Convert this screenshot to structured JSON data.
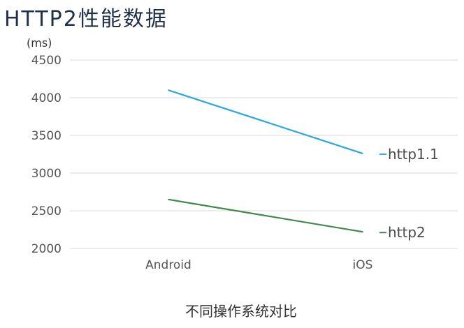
{
  "title": "HTTP2性能数据",
  "chart_data": {
    "type": "line",
    "categories": [
      "Android",
      "iOS"
    ],
    "series": [
      {
        "name": "http1.1",
        "values": [
          4100,
          3260
        ],
        "color": "#29a9e0"
      },
      {
        "name": "http2",
        "values": [
          2650,
          2220
        ],
        "color": "#3d8a4a"
      }
    ],
    "ylabel": "(ms)",
    "xlabel": "不同操作系统对比",
    "ylim": [
      2000,
      4500
    ],
    "yticks": [
      2000,
      2500,
      3000,
      3500,
      4000,
      4500
    ],
    "grid": true,
    "legend": "right"
  }
}
